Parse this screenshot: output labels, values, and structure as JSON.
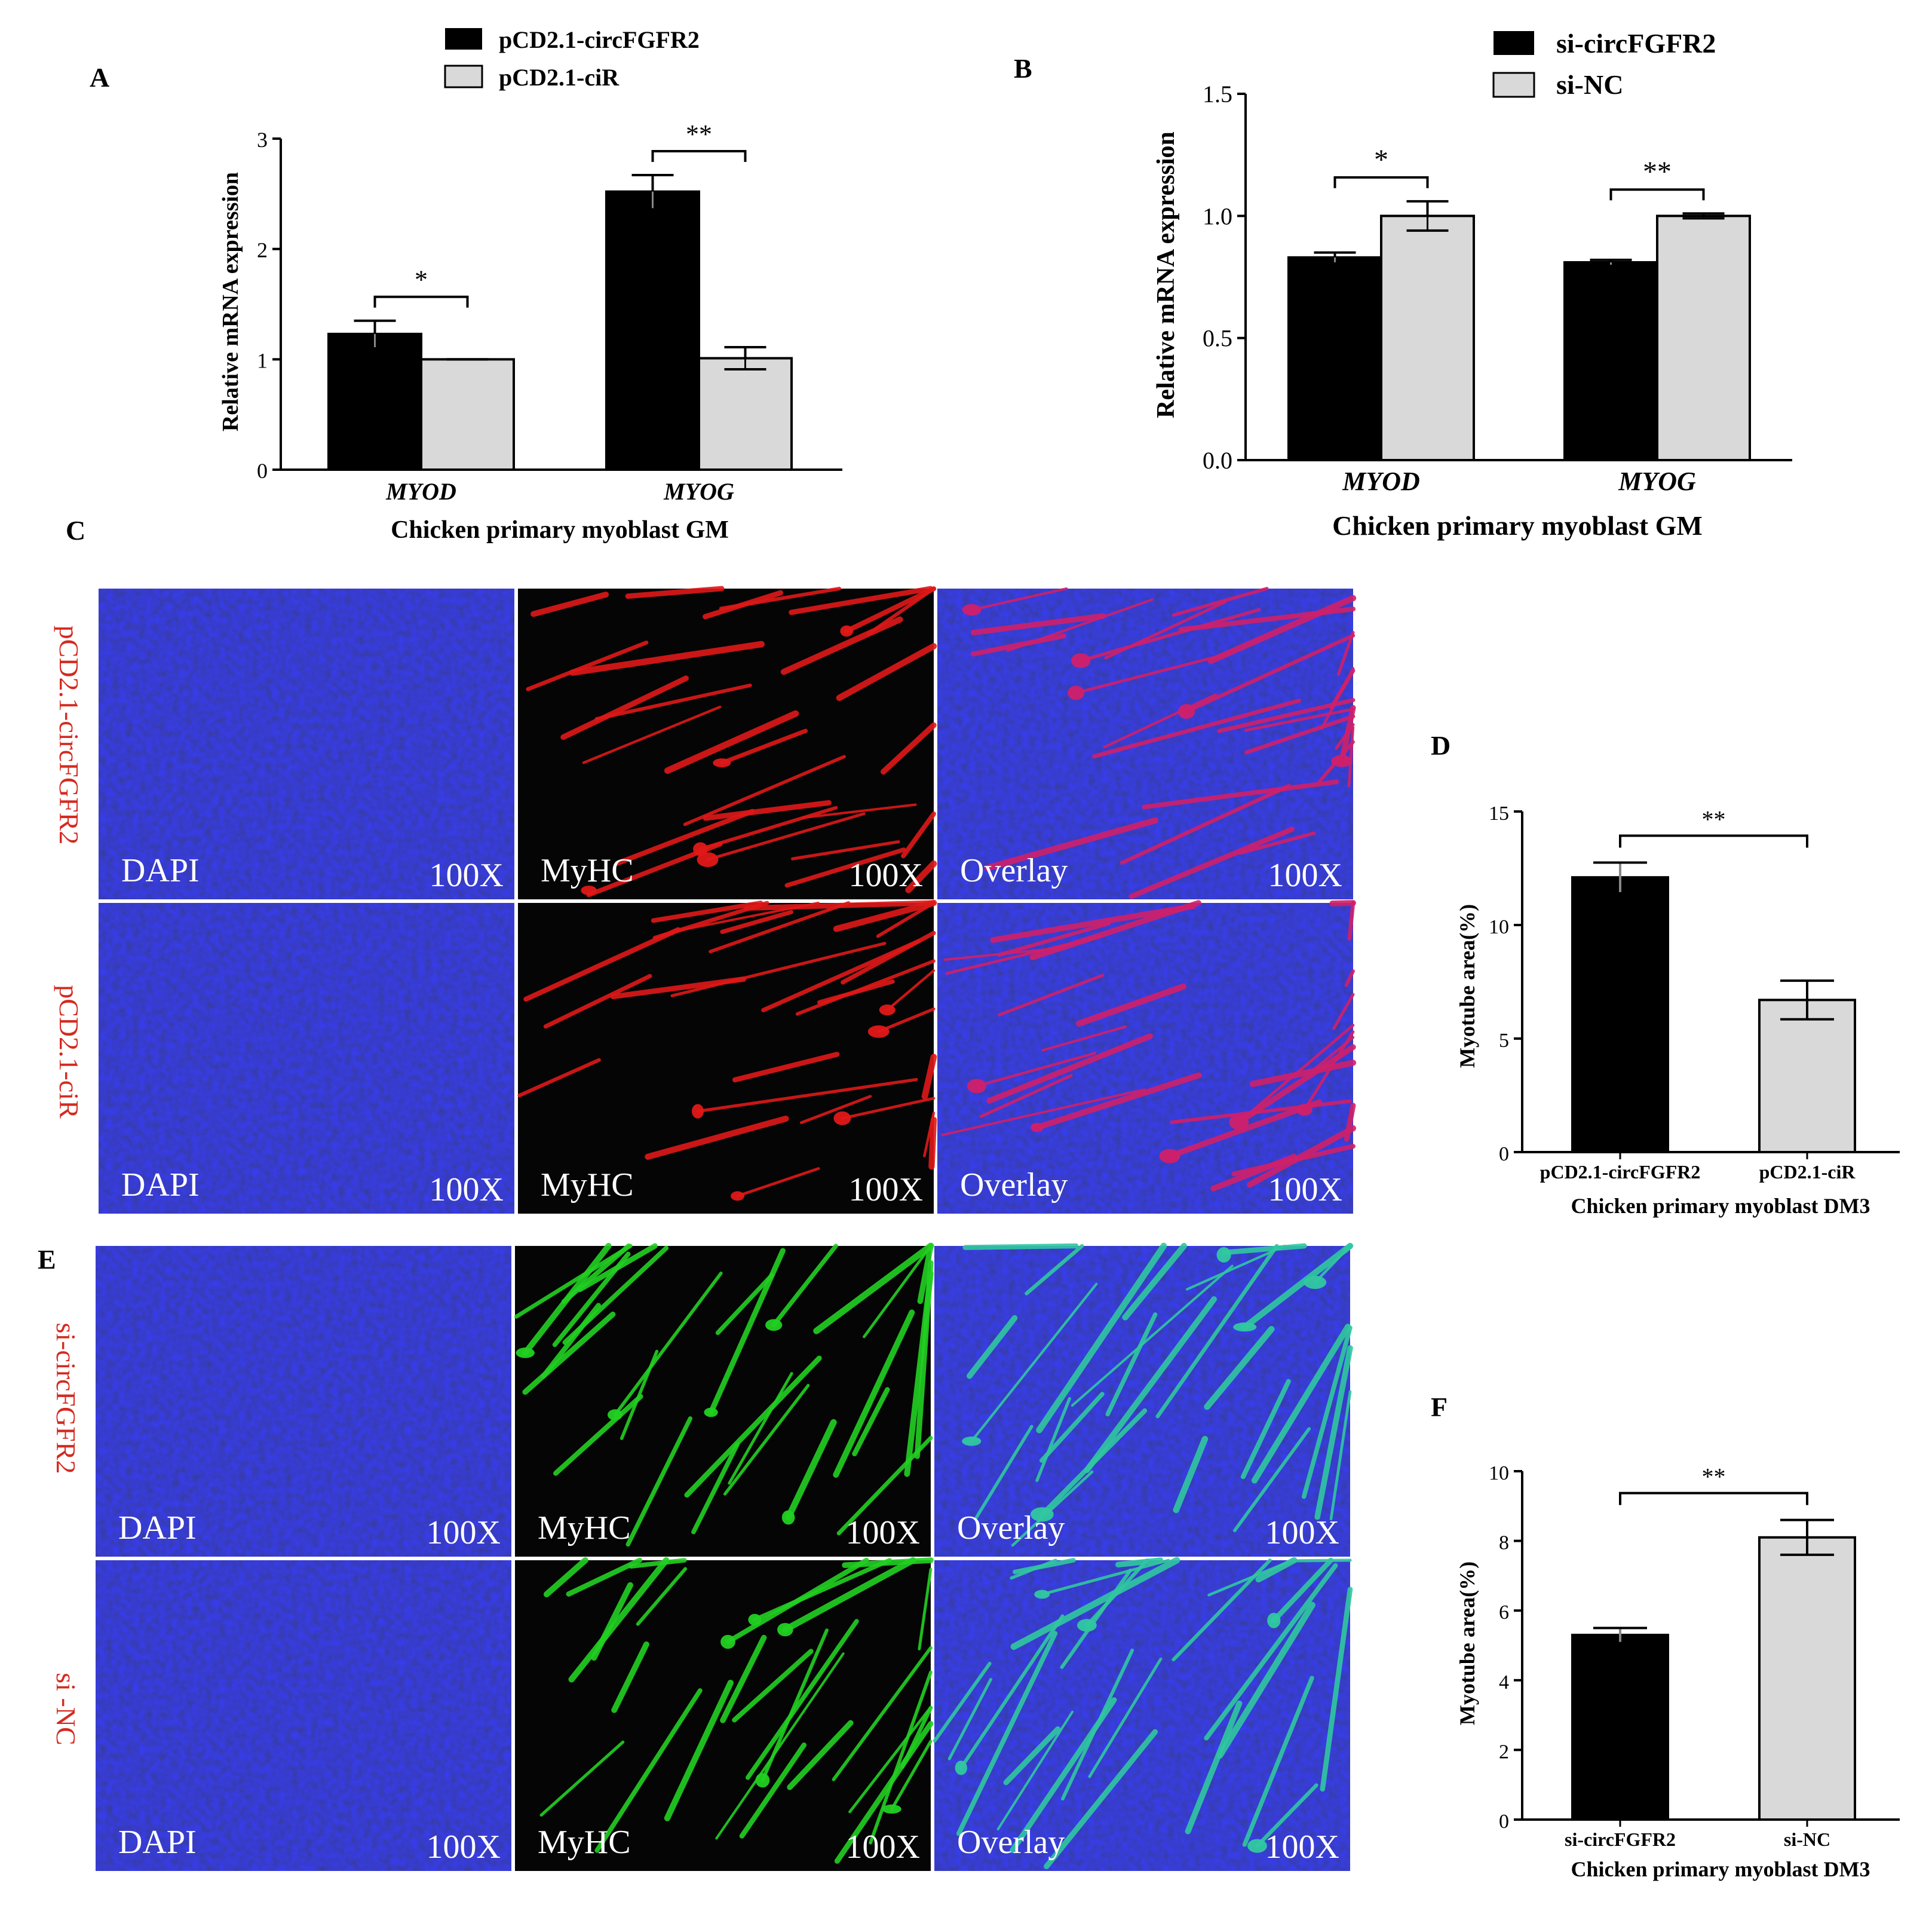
{
  "panels": {
    "A": {
      "letter": "A",
      "legend": [
        "pCD2.1-circFGFR2",
        "pCD2.1-ciR"
      ],
      "ylabel": "Relative mRNA expression",
      "xlabel": "Chicken primary myoblast GM",
      "yticks": [
        "0",
        "1",
        "2",
        "3"
      ]
    },
    "B": {
      "letter": "B",
      "legend": [
        "si-circFGFR2",
        "si-NC"
      ],
      "ylabel": "Relative mRNA expression",
      "xlabel": "Chicken primary myoblast GM",
      "yticks": [
        "0.0",
        "0.5",
        "1.0",
        "1.5"
      ]
    },
    "C": {
      "letter": "C",
      "rows": [
        "pCD2.1-circFGFR2",
        "pCD2.1-ciR"
      ],
      "channels": [
        "DAPI",
        "MyHC",
        "Overlay"
      ],
      "magnification": "100X"
    },
    "D": {
      "letter": "D",
      "ylabel": "Myotube area(%)",
      "xlabel": "Chicken primary myoblast DM3",
      "yticks": [
        "0",
        "5",
        "10",
        "15"
      ]
    },
    "E": {
      "letter": "E",
      "rows": [
        "si-circFGFR2",
        "si -NC"
      ],
      "channels": [
        "DAPI",
        "MyHC",
        "Overlay"
      ],
      "magnification": "100X"
    },
    "F": {
      "letter": "F",
      "ylabel": "Myotube area(%)",
      "xlabel": "Chicken primary myoblast DM3",
      "yticks": [
        "0",
        "2",
        "4",
        "6",
        "8",
        "10"
      ]
    }
  },
  "colors": {
    "series1": "#000000",
    "series2": "#d9d9d9",
    "label_red": "#d42a20",
    "dapi": "#1010a0",
    "myhc_red": "#e01818",
    "myhc_green": "#20d020"
  },
  "chart_data": [
    {
      "panel": "A",
      "type": "bar",
      "categories": [
        "MYOD",
        "MYOG"
      ],
      "series": [
        {
          "name": "pCD2.1-circFGFR2",
          "values": [
            1.23,
            2.52
          ],
          "errors": [
            0.12,
            0.15
          ]
        },
        {
          "name": "pCD2.1-ciR",
          "values": [
            1.0,
            1.01
          ],
          "errors": [
            0.0,
            0.1
          ]
        }
      ],
      "significance": [
        "*",
        "**"
      ],
      "ylim": [
        0,
        3
      ],
      "ylabel": "Relative mRNA expression",
      "xlabel": "Chicken primary myoblast GM"
    },
    {
      "panel": "B",
      "type": "bar",
      "categories": [
        "MYOD",
        "MYOG"
      ],
      "series": [
        {
          "name": "si-circFGFR2",
          "values": [
            0.83,
            0.81
          ],
          "errors": [
            0.02,
            0.01
          ]
        },
        {
          "name": "si-NC",
          "values": [
            1.0,
            1.0
          ],
          "errors": [
            0.06,
            0.01
          ]
        }
      ],
      "significance": [
        "*",
        "**"
      ],
      "ylim": [
        0,
        1.5
      ],
      "ylabel": "Relative mRNA expression",
      "xlabel": "Chicken primary myoblast GM"
    },
    {
      "panel": "D",
      "type": "bar",
      "categories": [
        "pCD2.1-circFGFR2",
        "pCD2.1-ciR"
      ],
      "values": [
        12.1,
        6.7
      ],
      "errors": [
        0.65,
        0.85
      ],
      "significance": [
        "**"
      ],
      "ylim": [
        0,
        15
      ],
      "ylabel": "Myotube area(%)",
      "xlabel": "Chicken primary myoblast DM3"
    },
    {
      "panel": "F",
      "type": "bar",
      "categories": [
        "si-circFGFR2",
        "si-NC"
      ],
      "values": [
        5.3,
        8.1
      ],
      "errors": [
        0.2,
        0.5
      ],
      "significance": [
        "**"
      ],
      "ylim": [
        0,
        10
      ],
      "ylabel": "Myotube area(%)",
      "xlabel": "Chicken primary myoblast DM3"
    }
  ]
}
